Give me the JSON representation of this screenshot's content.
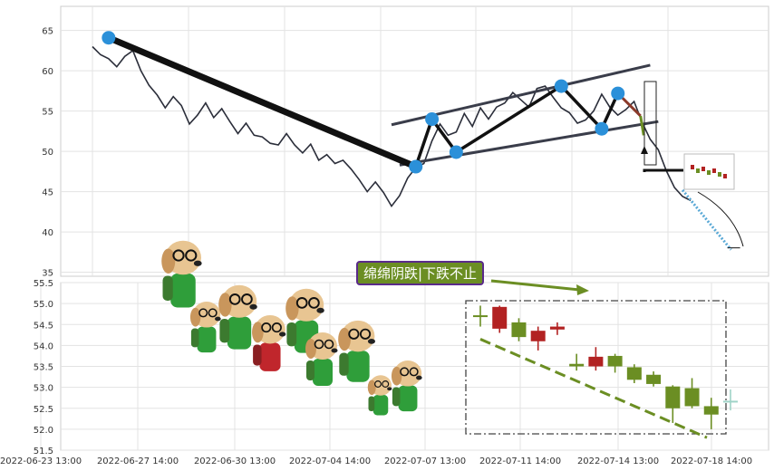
{
  "annotation": {
    "text": "绵绵阴跌|下跌不止"
  },
  "chart_data": [
    {
      "type": "line",
      "title": "",
      "xlabel": "",
      "ylabel": "",
      "ylim": [
        34.5,
        68
      ],
      "yticks": [
        35,
        40,
        45,
        50,
        55,
        60,
        65
      ],
      "grid": true,
      "price_series": [
        63,
        62,
        61.5,
        60.5,
        61.8,
        62.5,
        60,
        58.2,
        57,
        55.4,
        56.8,
        55.7,
        53.4,
        54.5,
        56,
        54.2,
        55.3,
        53.7,
        52.2,
        53.5,
        52,
        51.8,
        51,
        50.8,
        52.2,
        50.8,
        49.8,
        50.9,
        48.9,
        49.6,
        48.5,
        48.9,
        47.8,
        46.5,
        45,
        46.2,
        44.9,
        43.2,
        44.5,
        46.7,
        48,
        48.5,
        51.3,
        53.4,
        52,
        52.4,
        54.7,
        53.1,
        55.4,
        54,
        55.5,
        56,
        57.3,
        56.4,
        55.5,
        57.8,
        58.1,
        56.7,
        55.4,
        54.8,
        53.5,
        53.9,
        55,
        57.1,
        55.5,
        54.5,
        55.2,
        56.2,
        53.6,
        51.5,
        50.2,
        47.6,
        45.5,
        44.4,
        43.9
      ],
      "pivots": [
        {
          "i": 2,
          "y": 64.1
        },
        {
          "i": 40,
          "y": 48.1
        },
        {
          "i": 42,
          "y": 54.0
        },
        {
          "i": 45,
          "y": 49.9
        },
        {
          "i": 58,
          "y": 58.1
        },
        {
          "i": 63,
          "y": 52.8
        },
        {
          "i": 65,
          "y": 57.2
        }
      ],
      "channel": {
        "upper": [
          {
            "i": 37,
            "y": 53.3
          },
          {
            "i": 69,
            "y": 60.7
          }
        ],
        "lower": [
          {
            "i": 38,
            "y": 48.3
          },
          {
            "i": 70,
            "y": 53.7
          }
        ]
      },
      "projection_down": {
        "i_start": 73,
        "y_start": 45.2,
        "i_end": 79,
        "y_end": 37.8
      }
    },
    {
      "type": "bar",
      "subtype": "candlestick",
      "ylim": [
        51.5,
        55.5
      ],
      "yticks": [
        51.5,
        52.0,
        52.5,
        53.0,
        53.5,
        54.0,
        54.5,
        55.0,
        55.5
      ],
      "x_ticks": [
        "2022-06-23 13:00",
        "2022-06-27 14:00",
        "2022-06-30 13:00",
        "2022-07-04 14:00",
        "2022-07-07 13:00",
        "2022-07-11 14:00",
        "2022-07-14 13:00",
        "2022-07-18 14:00"
      ],
      "candles": [
        {
          "o": 54.7,
          "c": 54.72,
          "h": 54.95,
          "l": 54.45,
          "color": "#6b8e23"
        },
        {
          "o": 54.92,
          "c": 54.4,
          "h": 54.95,
          "l": 54.3,
          "color": "#b22222"
        },
        {
          "o": 54.55,
          "c": 54.2,
          "h": 54.65,
          "l": 54.1,
          "color": "#6b8e23"
        },
        {
          "o": 54.35,
          "c": 54.1,
          "h": 54.45,
          "l": 53.88,
          "color": "#b22222"
        },
        {
          "o": 54.45,
          "c": 54.38,
          "h": 54.55,
          "l": 54.25,
          "color": "#b22222"
        },
        {
          "o": 53.56,
          "c": 53.5,
          "h": 53.8,
          "l": 53.4,
          "color": "#6b8e23"
        },
        {
          "o": 53.73,
          "c": 53.5,
          "h": 53.96,
          "l": 53.4,
          "color": "#b22222"
        },
        {
          "o": 53.75,
          "c": 53.5,
          "h": 53.8,
          "l": 53.35,
          "color": "#6b8e23"
        },
        {
          "o": 53.48,
          "c": 53.18,
          "h": 53.55,
          "l": 53.1,
          "color": "#6b8e23"
        },
        {
          "o": 53.3,
          "c": 53.08,
          "h": 53.38,
          "l": 53.02,
          "color": "#6b8e23"
        },
        {
          "o": 53.02,
          "c": 52.5,
          "h": 53.05,
          "l": 52.15,
          "color": "#6b8e23"
        },
        {
          "o": 52.98,
          "c": 52.55,
          "h": 53.22,
          "l": 52.5,
          "color": "#6b8e23"
        },
        {
          "o": 52.55,
          "c": 52.35,
          "h": 52.75,
          "l": 52.0,
          "color": "#6b8e23"
        },
        {
          "o": 52.68,
          "c": 52.68,
          "h": 52.95,
          "l": 52.45,
          "color": "#9fd3c7"
        }
      ],
      "trend_line": {
        "from": 54.15,
        "to": 51.8
      }
    }
  ]
}
